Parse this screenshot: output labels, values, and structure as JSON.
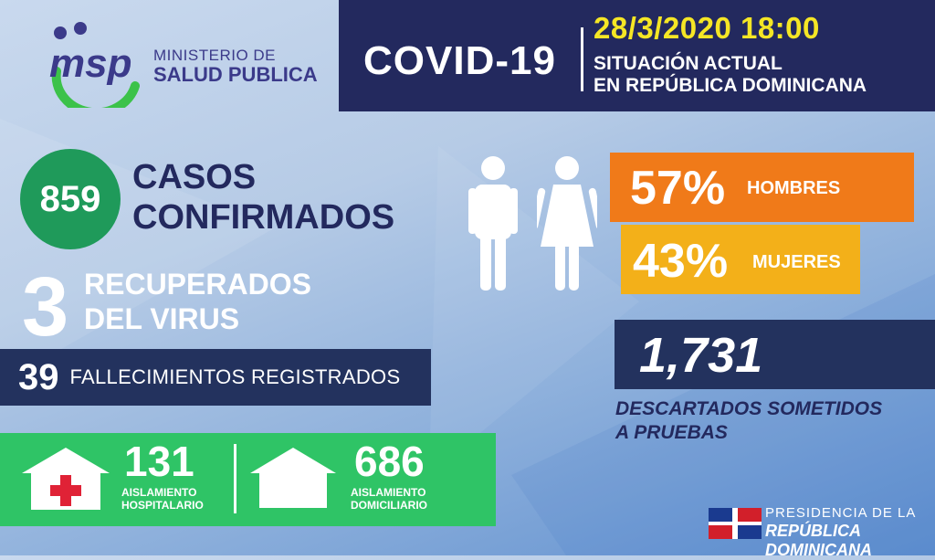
{
  "logo": {
    "brand": "msp",
    "line1": "MINISTERIO DE",
    "line2": "SALUD PUBLICA"
  },
  "header": {
    "title": "COVID-19",
    "datetime": "28/3/2020 18:00",
    "subtitle_line1": "SITUACIÓN ACTUAL",
    "subtitle_line2": "EN REPÚBLICA DOMINICANA"
  },
  "confirmed": {
    "count": "859",
    "label_line1": "CASOS",
    "label_line2": "CONFIRMADOS"
  },
  "recovered": {
    "count": "3",
    "label_line1": "RECUPERADOS",
    "label_line2": "DEL VIRUS"
  },
  "deaths": {
    "count": "39",
    "label": "FALLECIMIENTOS REGISTRADOS"
  },
  "isolation": {
    "hospital": {
      "count": "131",
      "label_line1": "AISLAMIENTO",
      "label_line2": "HOSPITALARIO"
    },
    "home": {
      "count": "686",
      "label_line1": "AISLAMIENTO",
      "label_line2": "DOMICILIARIO"
    }
  },
  "gender": {
    "men": {
      "percent": "57%",
      "label": "HOMBRES"
    },
    "women": {
      "percent": "43%",
      "label": "MUJERES"
    }
  },
  "discarded": {
    "count": "1,731",
    "label_line1": "DESCARTADOS SOMETIDOS",
    "label_line2": "A PRUEBAS"
  },
  "presidency": {
    "line1": "PRESIDENCIA DE LA",
    "line2": "REPÚBLICA DOMINICANA"
  },
  "colors": {
    "navy": "#23295e",
    "green": "#1f9a5a",
    "bright_green": "#2fc466",
    "orange": "#f07a19",
    "amber": "#f3b019",
    "yellow": "#f5e625",
    "logo_blue": "#3b3a8a"
  }
}
